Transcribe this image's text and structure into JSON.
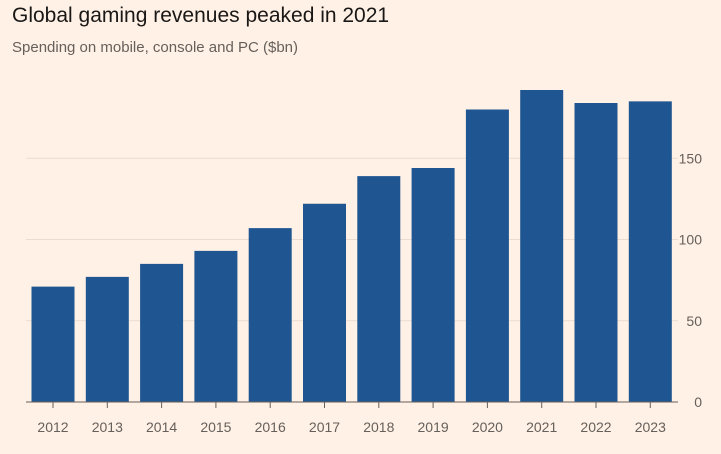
{
  "chart_data": {
    "type": "bar",
    "title": "Global gaming revenues peaked in 2021",
    "subtitle": "Spending on mobile, console and PC ($bn)",
    "categories": [
      "2012",
      "2013",
      "2014",
      "2015",
      "2016",
      "2017",
      "2018",
      "2019",
      "2020",
      "2021",
      "2022",
      "2023"
    ],
    "values": [
      71,
      77,
      85,
      93,
      107,
      122,
      139,
      144,
      180,
      192,
      184,
      185
    ],
    "ylim": [
      0,
      200
    ],
    "yticks": [
      0,
      50,
      100,
      150
    ],
    "y_axis_side": "right",
    "grid": true,
    "colors": {
      "bar": "#1f5591",
      "background": "#fff1e5",
      "grid": "#e9ddd2",
      "baseline": "#66605c"
    }
  }
}
